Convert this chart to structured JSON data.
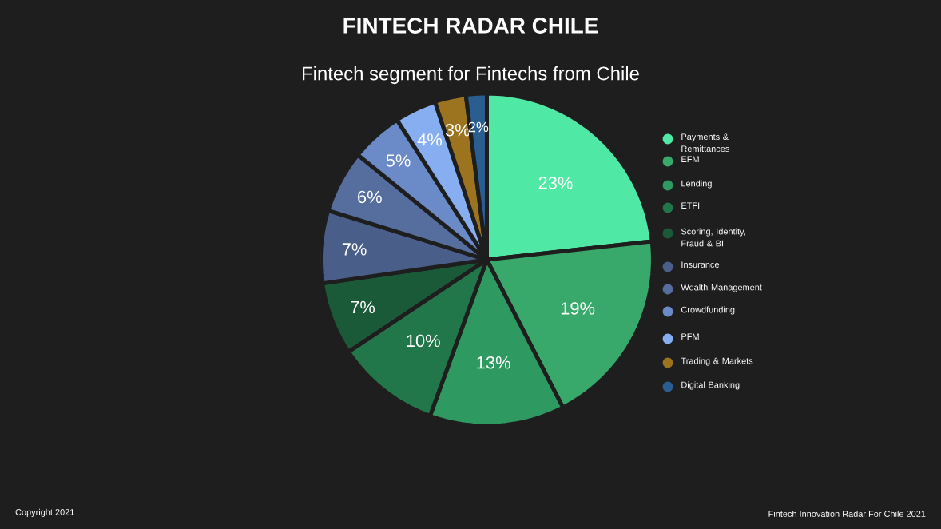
{
  "chart_data": {
    "type": "pie",
    "title": "FINTECH RADAR CHILE",
    "subtitle": "Fintech segment for Fintechs from Chile",
    "categories": [
      "Payments & Remittances",
      "EFM",
      "Lending",
      "ETFI",
      "Scoring, Identity, Fraud & BI",
      "Insurance",
      "Wealth Management",
      "Crowdfunding",
      "PFM",
      "Trading & Markets",
      "Digital Banking"
    ],
    "values": [
      23,
      19,
      13,
      10,
      7,
      7,
      6,
      5,
      4,
      3,
      2
    ],
    "value_labels": [
      "23%",
      "19%",
      "13%",
      "10%",
      "7%",
      "7%",
      "6%",
      "5%",
      "4%",
      "3%",
      "2%"
    ],
    "colors": [
      "#50e8a5",
      "#38a96b",
      "#2e9960",
      "#22774a",
      "#1a5a38",
      "#4a5e8a",
      "#566e9e",
      "#6a8ac8",
      "#86aef0",
      "#9c7420",
      "#2a5e90"
    ],
    "legend": "right",
    "annotations": [
      "Copyright 2021",
      "Fintech Innovation Radar For Chile 2021"
    ]
  }
}
